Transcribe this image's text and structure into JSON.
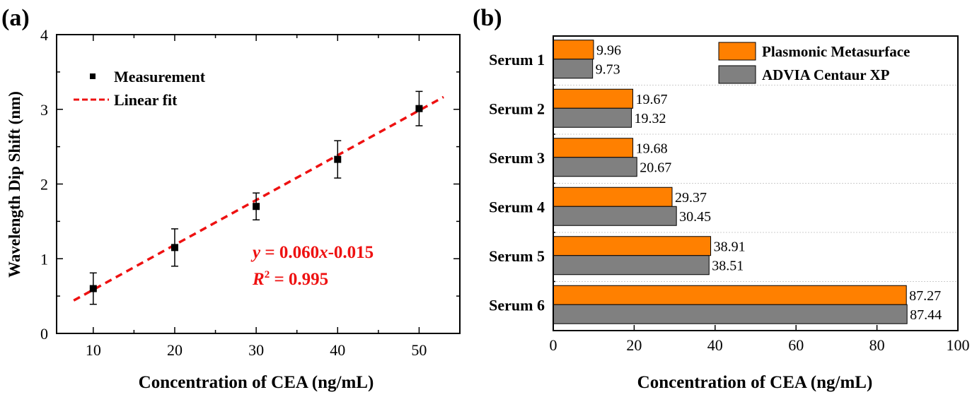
{
  "chart_data": [
    {
      "panel_label": "(a)",
      "type": "scatter",
      "title": "",
      "xlabel": "Concentration of CEA (ng/mL)",
      "ylabel": "Wavelength Dip Shift (nm)",
      "xlim": [
        5.5,
        55
      ],
      "ylim": [
        0,
        4
      ],
      "xticks": [
        10,
        20,
        30,
        40,
        50
      ],
      "yticks": [
        0,
        1,
        2,
        3,
        4
      ],
      "grid": false,
      "legend_position": "top-left",
      "series": [
        {
          "name": "Measurement",
          "kind": "scatter",
          "color": "#000000",
          "x": [
            10,
            20,
            30,
            40,
            50
          ],
          "y": [
            0.6,
            1.15,
            1.7,
            2.33,
            3.01
          ],
          "error": [
            0.21,
            0.25,
            0.18,
            0.25,
            0.23
          ]
        },
        {
          "name": "Linear fit",
          "kind": "line",
          "style": "dashed",
          "color": "#ee1111",
          "slope": 0.06,
          "intercept": -0.015,
          "x_range": [
            7.6,
            53
          ]
        }
      ],
      "annotations": {
        "equation_y": "y",
        "equation_rest": " = 0.060",
        "equation_x": "x",
        "equation_tail": "-0.015",
        "r2_r": "R",
        "r2_sup": "2",
        "r2_rest": " = 0.995"
      }
    },
    {
      "panel_label": "(b)",
      "type": "bar",
      "orientation": "horizontal",
      "title": "",
      "xlabel": "Concentration of CEA (ng/mL)",
      "ylabel": "",
      "xlim": [
        0,
        100
      ],
      "xticks": [
        0,
        20,
        40,
        60,
        80,
        100
      ],
      "grid": true,
      "legend_position": "top-right",
      "categories": [
        "Serum 1",
        "Serum 2",
        "Serum 3",
        "Serum 4",
        "Serum 5",
        "Serum 6"
      ],
      "series": [
        {
          "name": "Plasmonic Metasurface",
          "color": "#ff8000",
          "values": [
            9.96,
            19.67,
            19.68,
            29.37,
            38.91,
            87.27
          ],
          "labels": [
            "9.96",
            "19.67",
            "19.68",
            "29.37",
            "38.91",
            "87.27"
          ]
        },
        {
          "name": "ADVIA Centaur XP",
          "color": "#808080",
          "values": [
            9.73,
            19.32,
            20.67,
            30.45,
            38.51,
            87.44
          ],
          "labels": [
            "9.73",
            "19.32",
            "20.67",
            "30.45",
            "38.51",
            "87.44"
          ]
        }
      ]
    }
  ]
}
